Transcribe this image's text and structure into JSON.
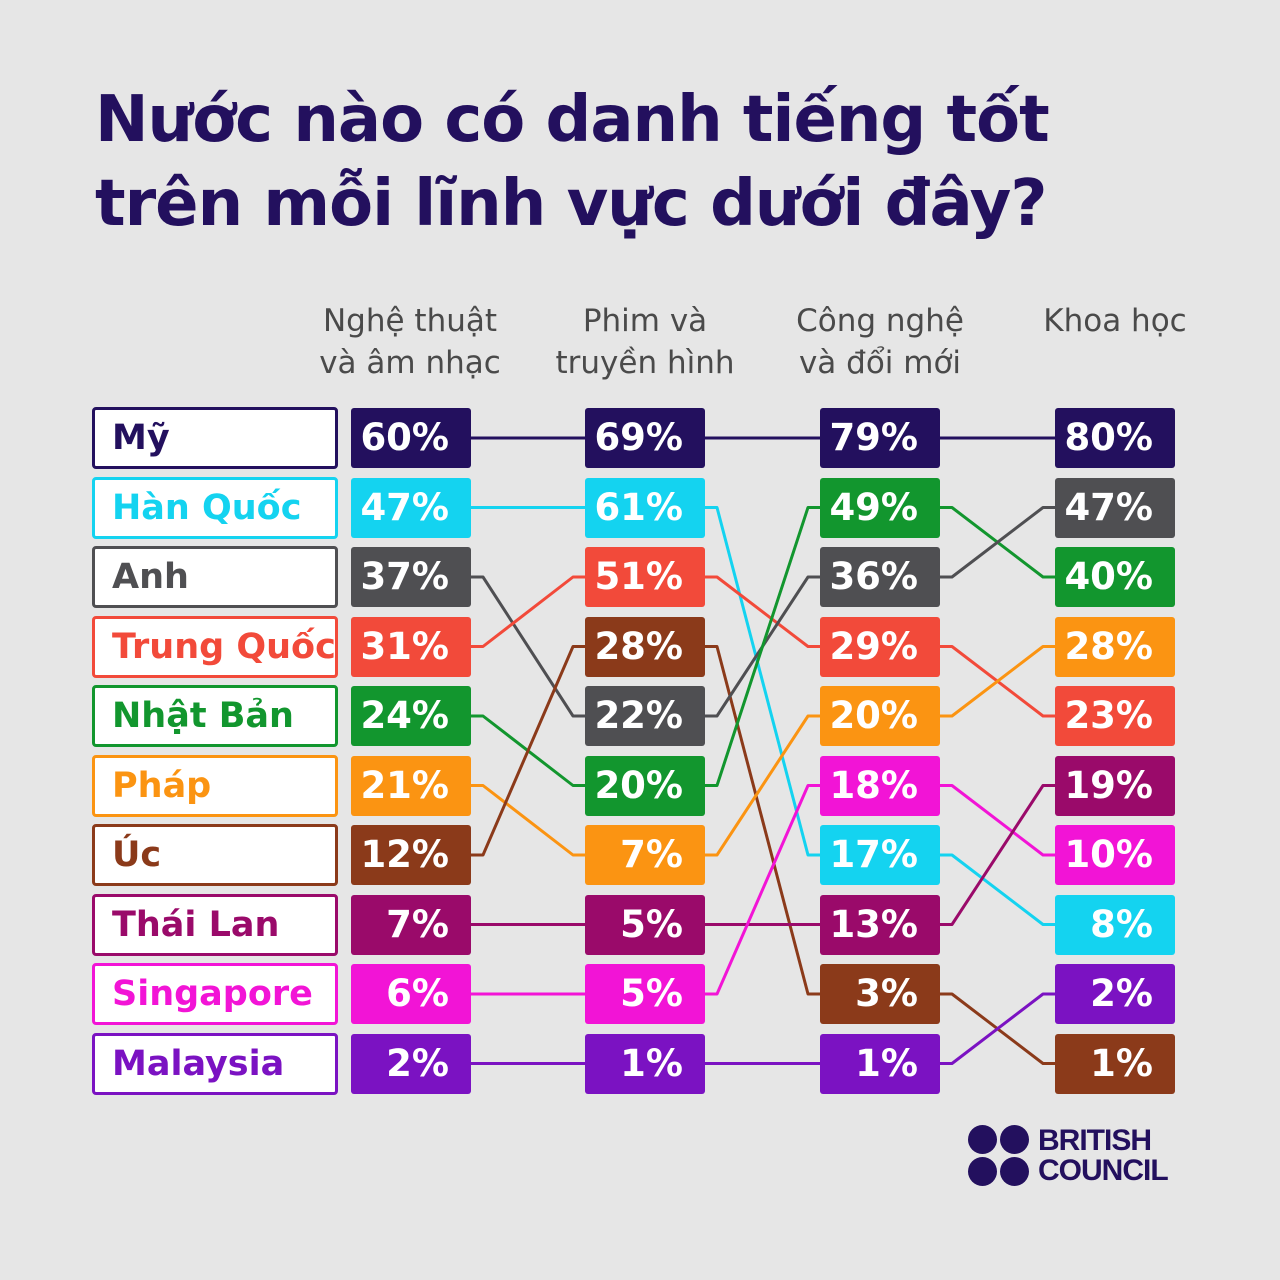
{
  "title": {
    "line1": "Nước nào có danh tiếng tốt",
    "line2": "trên mỗi lĩnh vực dưới đây?"
  },
  "brand": {
    "line1": "BRITISH",
    "line2": "COUNCIL",
    "color": "#23105e"
  },
  "chart_data": {
    "type": "table",
    "columns": [
      {
        "id": "art",
        "label_lines": [
          "Nghệ thuật",
          "và âm nhạc"
        ],
        "rows": [
          {
            "country": "Mỹ",
            "value": "60%"
          },
          {
            "country": "Hàn Quốc",
            "value": "47%"
          },
          {
            "country": "Anh",
            "value": "37%"
          },
          {
            "country": "Trung Quốc",
            "value": "31%"
          },
          {
            "country": "Nhật Bản",
            "value": "24%"
          },
          {
            "country": "Pháp",
            "value": "21%"
          },
          {
            "country": "Úc",
            "value": "12%"
          },
          {
            "country": "Thái Lan",
            "value": "7%"
          },
          {
            "country": "Singapore",
            "value": "6%"
          },
          {
            "country": "Malaysia",
            "value": "2%"
          }
        ]
      },
      {
        "id": "film",
        "label_lines": [
          "Phim và",
          "truyền hình"
        ],
        "rows": [
          {
            "country": "Mỹ",
            "value": "69%"
          },
          {
            "country": "Hàn Quốc",
            "value": "61%"
          },
          {
            "country": "Trung Quốc",
            "value": "51%"
          },
          {
            "country": "Úc",
            "value": "28%"
          },
          {
            "country": "Anh",
            "value": "22%"
          },
          {
            "country": "Nhật Bản",
            "value": "20%"
          },
          {
            "country": "Pháp",
            "value": "7%"
          },
          {
            "country": "Thái Lan",
            "value": "5%"
          },
          {
            "country": "Singapore",
            "value": "5%"
          },
          {
            "country": "Malaysia",
            "value": "1%"
          }
        ]
      },
      {
        "id": "tech",
        "label_lines": [
          "Công nghệ",
          "và đổi mới"
        ],
        "rows": [
          {
            "country": "Mỹ",
            "value": "79%"
          },
          {
            "country": "Nhật Bản",
            "value": "49%"
          },
          {
            "country": "Anh",
            "value": "36%"
          },
          {
            "country": "Trung Quốc",
            "value": "29%"
          },
          {
            "country": "Pháp",
            "value": "20%"
          },
          {
            "country": "Singapore",
            "value": "18%"
          },
          {
            "country": "Hàn Quốc",
            "value": "17%"
          },
          {
            "country": "Thái Lan",
            "value": "13%"
          },
          {
            "country": "Úc",
            "value": "3%"
          },
          {
            "country": "Malaysia",
            "value": "1%"
          }
        ]
      },
      {
        "id": "science",
        "label_lines": [
          "",
          "Khoa học"
        ],
        "rows": [
          {
            "country": "Mỹ",
            "value": "80%"
          },
          {
            "country": "Anh",
            "value": "47%"
          },
          {
            "country": "Nhật Bản",
            "value": "40%"
          },
          {
            "country": "Pháp",
            "value": "28%"
          },
          {
            "country": "Trung Quốc",
            "value": "23%"
          },
          {
            "country": "Thái Lan",
            "value": "19%"
          },
          {
            "country": "Singapore",
            "value": "10%"
          },
          {
            "country": "Hàn Quốc",
            "value": "8%"
          },
          {
            "country": "Malaysia",
            "value": "2%"
          },
          {
            "country": "Úc",
            "value": "1%"
          }
        ]
      }
    ],
    "countries": [
      {
        "name": "Mỹ",
        "color": "#23105e"
      },
      {
        "name": "Hàn Quốc",
        "color": "#14d3f0"
      },
      {
        "name": "Anh",
        "color": "#4f4f52"
      },
      {
        "name": "Trung Quốc",
        "color": "#f24a3a"
      },
      {
        "name": "Nhật Bản",
        "color": "#12962e"
      },
      {
        "name": "Pháp",
        "color": "#fb9412"
      },
      {
        "name": "Úc",
        "color": "#8b3a1a"
      },
      {
        "name": "Thái Lan",
        "color": "#9a0a6a"
      },
      {
        "name": "Singapore",
        "color": "#f214d6"
      },
      {
        "name": "Malaysia",
        "color": "#7b12c2"
      }
    ]
  }
}
